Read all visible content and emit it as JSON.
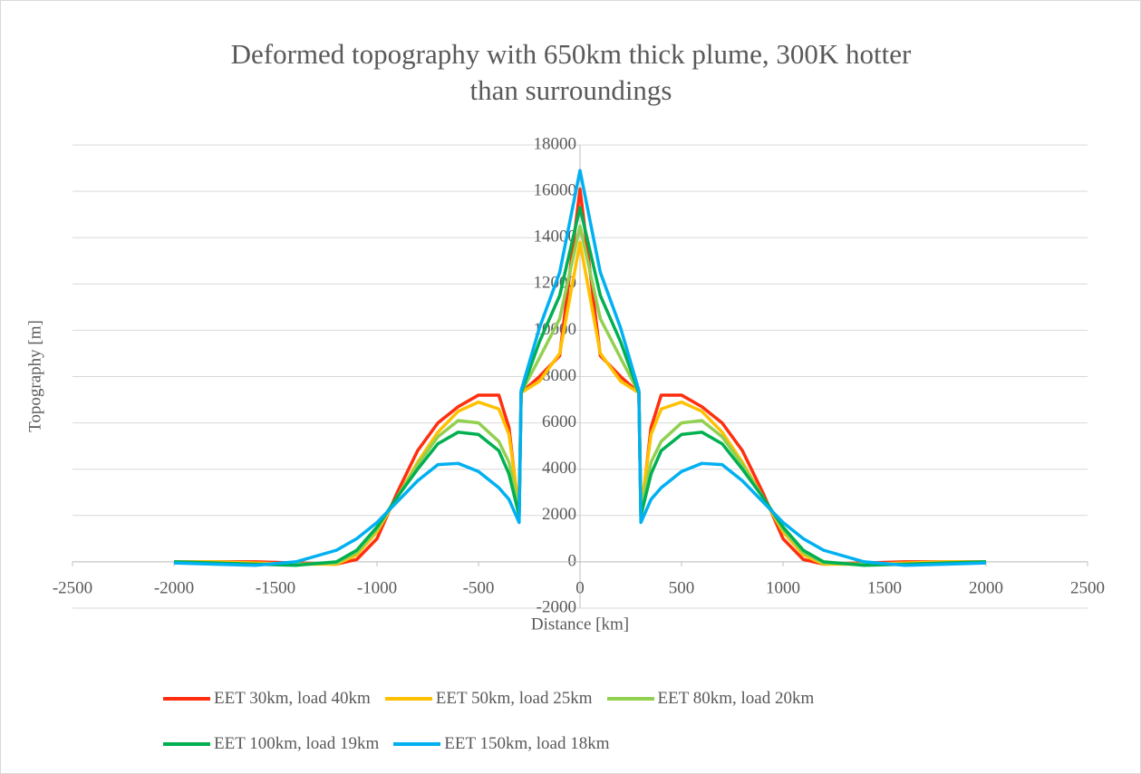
{
  "chart_data": {
    "type": "line",
    "title": "Deformed topography with 650km thick plume, 300K hotter than surroundings",
    "x_label": "Distance [km]",
    "y_label": "Topography [m]",
    "xlim": [
      -2500,
      2500
    ],
    "xticks": [
      -2500,
      -2000,
      -1500,
      -1000,
      -500,
      0,
      500,
      1000,
      1500,
      2000,
      2500
    ],
    "ylim": [
      -2000,
      18000
    ],
    "yticks": [
      -2000,
      0,
      2000,
      4000,
      6000,
      8000,
      10000,
      12000,
      14000,
      16000,
      18000
    ],
    "grid": true,
    "x": [
      -2000,
      -1800,
      -1600,
      -1400,
      -1200,
      -1100,
      -1000,
      -900,
      -800,
      -700,
      -600,
      -500,
      -400,
      -350,
      -300,
      -290,
      -200,
      -100,
      0,
      100,
      200,
      290,
      300,
      350,
      400,
      500,
      600,
      700,
      800,
      900,
      1000,
      1100,
      1200,
      1400,
      1600,
      1800,
      2000
    ],
    "series": [
      {
        "name": "EET 30km, load 40km",
        "color": "#ff2e0f",
        "values": [
          0,
          0,
          0,
          -50,
          -100,
          100,
          1000,
          3000,
          4800,
          6000,
          6700,
          7200,
          7200,
          5800,
          2000,
          7300,
          8000,
          8900,
          16100,
          8900,
          8000,
          7300,
          2000,
          5800,
          7200,
          7200,
          6700,
          6000,
          4800,
          3000,
          1000,
          100,
          -100,
          -50,
          0,
          0,
          0
        ]
      },
      {
        "name": "EET 50km, load 25km",
        "color": "#ffc000",
        "values": [
          0,
          0,
          -50,
          -100,
          -100,
          300,
          1300,
          2800,
          4300,
          5600,
          6500,
          6900,
          6600,
          5500,
          2300,
          7300,
          7800,
          9000,
          13800,
          9000,
          7800,
          7300,
          2300,
          5500,
          6600,
          6900,
          6500,
          5600,
          4300,
          2800,
          1300,
          300,
          -100,
          -100,
          -50,
          0,
          0
        ]
      },
      {
        "name": "EET 80km, load 20km",
        "color": "#92d050",
        "values": [
          0,
          -50,
          -100,
          -100,
          -50,
          400,
          1400,
          2800,
          4200,
          5400,
          6100,
          6000,
          5200,
          4300,
          2300,
          7300,
          8800,
          10500,
          14500,
          10500,
          8800,
          7300,
          2300,
          4300,
          5200,
          6000,
          6100,
          5400,
          4200,
          2800,
          1400,
          400,
          -50,
          -100,
          -100,
          -50,
          0
        ]
      },
      {
        "name": "EET 100km, load 19km",
        "color": "#00b050",
        "values": [
          0,
          -50,
          -100,
          -150,
          0,
          500,
          1500,
          2800,
          4000,
          5100,
          5600,
          5500,
          4800,
          3800,
          2000,
          7300,
          9500,
          11500,
          15300,
          11500,
          9500,
          7300,
          2000,
          3800,
          4800,
          5500,
          5600,
          5100,
          4000,
          2800,
          1500,
          500,
          0,
          -150,
          -100,
          -50,
          0
        ]
      },
      {
        "name": "EET 150km, load 18km",
        "color": "#00b0f0",
        "values": [
          -50,
          -100,
          -150,
          0,
          500,
          1000,
          1700,
          2600,
          3500,
          4200,
          4250,
          3900,
          3200,
          2700,
          1700,
          7400,
          10100,
          12500,
          16900,
          12500,
          10100,
          7400,
          1700,
          2700,
          3200,
          3900,
          4250,
          4200,
          3500,
          2600,
          1700,
          1000,
          500,
          0,
          -150,
          -100,
          -50
        ]
      }
    ]
  }
}
